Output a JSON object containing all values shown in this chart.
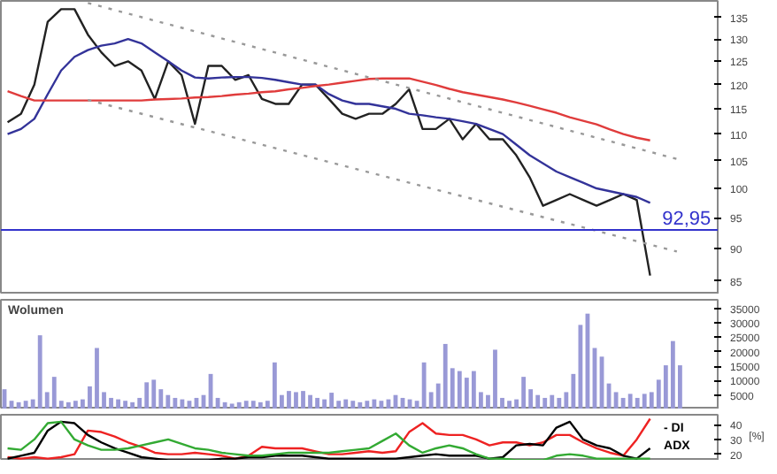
{
  "chart_data": [
    {
      "type": "line",
      "tick_labels": "y",
      "log": "y",
      "ylim": [
        83,
        139
      ],
      "yticks": [
        85,
        90,
        95,
        100,
        105,
        110,
        115,
        120,
        125,
        130,
        135
      ],
      "grid": false,
      "categories": [
        null,
        null,
        null,
        null,
        null,
        null,
        null,
        null,
        null,
        null,
        null,
        null,
        null,
        null,
        null,
        null,
        null,
        null,
        null,
        null,
        null,
        null,
        null,
        null,
        null,
        null,
        null,
        null,
        null,
        null,
        null,
        null,
        null,
        null,
        null,
        null,
        null,
        null,
        null,
        null,
        null,
        null,
        null,
        null,
        null,
        null,
        null,
        null,
        null,
        null,
        null
      ],
      "series": [
        {
          "color": "#222222",
          "values": [
            112.3,
            114,
            120,
            134,
            137,
            137,
            131,
            127,
            124,
            125,
            123,
            117,
            125,
            122,
            112,
            124,
            124,
            121,
            122,
            117,
            116,
            116,
            120,
            120,
            117,
            114,
            113,
            114,
            114,
            116,
            119,
            111,
            111,
            113,
            109,
            112,
            109,
            109,
            106,
            102,
            97,
            98,
            99,
            98,
            97,
            98,
            99,
            98,
            85.8,
            null,
            null
          ]
        },
        {
          "color": "#333399",
          "values": [
            110,
            111,
            113,
            118,
            123,
            126,
            127.5,
            128.5,
            129,
            130,
            129,
            127,
            125,
            123,
            121.5,
            121.3,
            121.5,
            121.6,
            121.6,
            121.4,
            121,
            120.5,
            120,
            120,
            118,
            116.7,
            116,
            116,
            115.5,
            115,
            114,
            113.7,
            113.3,
            113,
            112.5,
            112,
            111,
            110,
            108,
            106,
            104.5,
            103,
            102,
            101,
            100,
            99.5,
            99,
            98.5,
            97.5,
            null,
            null
          ]
        },
        {
          "color": "#e03c3c",
          "values": [
            118.6,
            117.6,
            116.7,
            116.7,
            116.7,
            116.7,
            116.7,
            116.7,
            116.7,
            116.7,
            116.7,
            116.9,
            117,
            117.1,
            117.3,
            117.4,
            117.6,
            117.9,
            118.1,
            118.4,
            118.6,
            119,
            119.3,
            119.7,
            120,
            120.4,
            120.8,
            121.2,
            121.3,
            121.3,
            121.3,
            120.6,
            119.9,
            119.1,
            118.4,
            117.9,
            117.4,
            116.9,
            116.3,
            115.6,
            114.9,
            114.2,
            113.3,
            112.6,
            111.9,
            110.9,
            110,
            109.3,
            108.8,
            null,
            null
          ]
        },
        {
          "color": "#999999",
          "line_style": "dotted",
          "values": [
            null,
            null,
            null,
            null,
            null,
            null,
            138.5,
            null,
            null,
            null,
            null,
            null,
            null,
            null,
            null,
            null,
            null,
            null,
            null,
            null,
            null,
            null,
            null,
            null,
            null,
            null,
            null,
            null,
            null,
            null,
            null,
            null,
            null,
            null,
            null,
            null,
            null,
            null,
            null,
            null,
            null,
            null,
            null,
            null,
            null,
            null,
            null,
            null,
            null,
            null,
            105.3
          ]
        },
        {
          "color": "#999999",
          "line_style": "dotted",
          "values": [
            null,
            null,
            null,
            null,
            null,
            null,
            116.8,
            null,
            null,
            null,
            null,
            null,
            null,
            null,
            null,
            null,
            null,
            null,
            null,
            null,
            null,
            null,
            null,
            null,
            null,
            null,
            null,
            null,
            null,
            null,
            null,
            null,
            null,
            null,
            null,
            null,
            null,
            null,
            null,
            null,
            null,
            null,
            null,
            null,
            null,
            null,
            null,
            null,
            null,
            null,
            89.5
          ]
        }
      ],
      "ref_lines": [
        {
          "axis": "y",
          "value": 92.95,
          "label": "92,95",
          "color": "#3333cc"
        }
      ]
    },
    {
      "type": "bar",
      "title": "Wolumen",
      "tick_labels": "y",
      "ylim": [
        0,
        38000
      ],
      "yticks": [
        5000,
        10000,
        15000,
        20000,
        25000,
        30000,
        35000
      ],
      "grid": false,
      "color": "#9999d6",
      "categories": [
        null,
        null,
        null,
        null,
        null,
        null,
        null,
        null,
        null,
        null,
        null,
        null,
        null,
        null,
        null,
        null,
        null,
        null,
        null,
        null,
        null,
        null,
        null,
        null,
        null,
        null,
        null,
        null,
        null,
        null,
        null,
        null,
        null,
        null,
        null,
        null,
        null,
        null,
        null,
        null,
        null,
        null,
        null,
        null,
        null,
        null,
        null,
        null,
        null,
        null,
        null,
        null,
        null,
        null,
        null,
        null,
        null,
        null,
        null,
        null,
        null,
        null,
        null,
        null,
        null,
        null,
        null,
        null,
        null,
        null,
        null,
        null,
        null,
        null,
        null,
        null,
        null,
        null,
        null,
        null,
        null,
        null,
        null,
        null,
        null,
        null,
        null,
        null,
        null,
        null,
        null,
        null,
        null,
        null,
        null,
        null
      ],
      "values": [
        7000,
        3000,
        2500,
        3000,
        3500,
        25700,
        6000,
        11300,
        3000,
        2500,
        3000,
        3500,
        8000,
        21300,
        6000,
        4000,
        3500,
        3000,
        2500,
        4000,
        9400,
        10300,
        7000,
        5000,
        4000,
        3500,
        3000,
        4000,
        5000,
        12300,
        4000,
        2500,
        2000,
        2500,
        3000,
        3000,
        2500,
        3000,
        16300,
        5000,
        6400,
        6000,
        6400,
        5000,
        4000,
        3500,
        5800,
        3000,
        3500,
        3000,
        2500,
        3000,
        3500,
        3000,
        3500,
        5000,
        4000,
        3500,
        3000,
        16300,
        6000,
        9000,
        22700,
        14300,
        13300,
        11000,
        13300,
        6000,
        5000,
        20700,
        4000,
        3000,
        3500,
        11300,
        7000,
        5000,
        4000,
        5000,
        4000,
        6000,
        12300,
        29300,
        33200,
        21300,
        18300,
        9000,
        6000,
        4000,
        5400,
        4000,
        5400,
        6000,
        10300,
        15300,
        23700,
        15300
      ]
    },
    {
      "type": "line",
      "ylabel": "[%]",
      "tick_labels": "y",
      "ylim": [
        15.6,
        46.7
      ],
      "yticks": [
        20,
        30,
        40
      ],
      "grid": false,
      "categories": [
        null,
        null,
        null,
        null,
        null,
        null,
        null,
        null,
        null,
        null,
        null,
        null,
        null,
        null,
        null,
        null,
        null,
        null,
        null,
        null,
        null,
        null,
        null,
        null,
        null,
        null,
        null,
        null,
        null,
        null,
        null,
        null,
        null,
        null,
        null,
        null,
        null,
        null,
        null,
        null,
        null,
        null,
        null,
        null,
        null,
        null,
        null,
        null,
        null,
        null,
        null
      ],
      "series": [
        {
          "name": "- DI",
          "color": "#ee2222",
          "values": [
            18,
            17,
            18,
            17,
            18,
            20,
            36,
            35,
            32,
            28,
            25,
            21,
            20,
            20,
            21,
            20,
            19,
            17,
            19,
            25,
            24,
            24,
            24,
            22,
            20,
            20,
            21,
            22,
            21,
            22,
            35,
            41,
            34,
            33,
            33,
            30,
            26,
            28,
            28,
            26,
            28,
            33,
            33,
            28,
            24,
            21,
            19,
            30,
            44,
            null,
            null
          ]
        },
        {
          "name": "ADX",
          "color": "#000000",
          "values": [
            17,
            19,
            21,
            36,
            42,
            41,
            33,
            28,
            24,
            21,
            18,
            17,
            16,
            16,
            16,
            16,
            17,
            17,
            18,
            18,
            19,
            19,
            19,
            18,
            17,
            17,
            17,
            17,
            17,
            17,
            18,
            19,
            20,
            19,
            19,
            19,
            17,
            18,
            26,
            27,
            26,
            38,
            42,
            30,
            26,
            24,
            19,
            17,
            24,
            null,
            null
          ]
        },
        {
          "color": "#33aa33",
          "values": [
            24,
            23,
            30,
            41,
            42,
            30,
            26,
            23,
            23,
            24,
            26,
            28,
            30,
            27,
            24,
            23,
            21,
            20,
            19,
            19,
            20,
            21,
            21,
            21,
            21,
            22,
            23,
            24,
            29,
            34,
            26,
            21,
            24,
            26,
            24,
            20,
            17,
            17,
            16,
            16,
            16,
            19,
            20,
            19,
            17,
            17,
            17,
            17,
            17,
            null,
            null
          ]
        }
      ]
    }
  ]
}
